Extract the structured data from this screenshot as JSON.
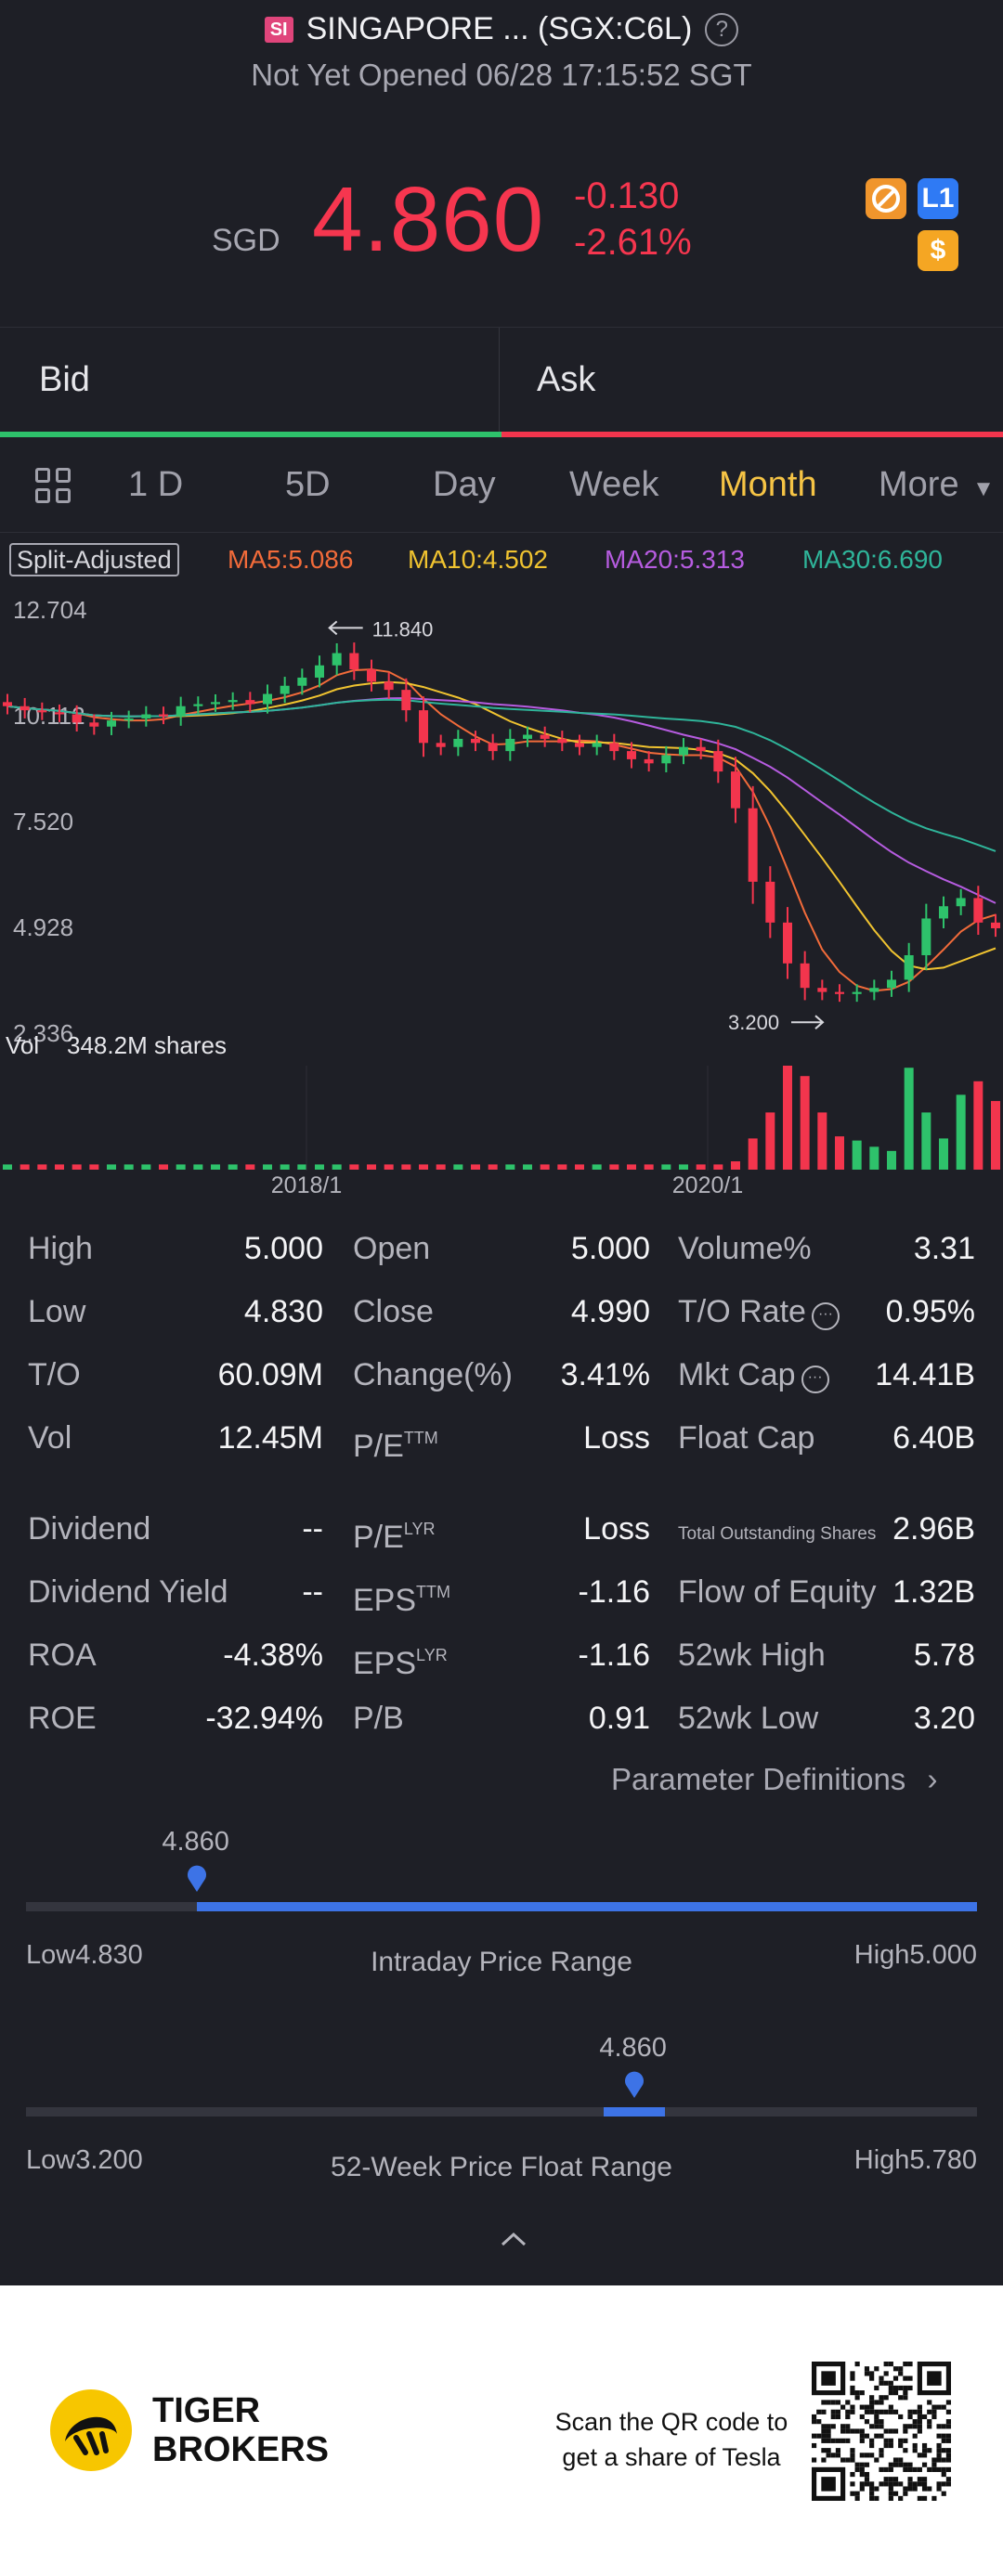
{
  "header": {
    "exchange_badge": "SI",
    "stock_name": "SINGAPORE ... (SGX:C6L)",
    "status_line": "Not Yet Opened 06/28 17:15:52 SGT",
    "currency": "SGD",
    "price": "4.860",
    "change": "-0.130",
    "change_pct": "-2.61%",
    "icon_l1": "L1",
    "icon_dollar": "$"
  },
  "orderbook": {
    "bid_label": "Bid",
    "ask_label": "Ask"
  },
  "tabs": {
    "d1": "1 D",
    "d5": "5D",
    "day": "Day",
    "week": "Week",
    "month": "Month",
    "more": "More"
  },
  "ma": {
    "split_label": "Split-Adjusted",
    "ma5": "MA5:5.086",
    "ma10": "MA10:4.502",
    "ma20": "MA20:5.313",
    "ma30": "MA30:6.690"
  },
  "chart_data": {
    "type": "candlestick",
    "y_ticks": [
      "12.704",
      "10.112",
      "7.520",
      "4.928",
      "2.336"
    ],
    "ylim": [
      2.336,
      12.704
    ],
    "annotation_high": "11.840",
    "annotation_low": "3.200",
    "volume_label": "Vol",
    "volume_value": "348.2M shares",
    "x_ticks": [
      "2018/1",
      "2020/1"
    ],
    "close": [
      10.3,
      10.2,
      10.15,
      10.1,
      9.9,
      9.8,
      9.95,
      10.0,
      10.1,
      10.05,
      10.3,
      10.35,
      10.4,
      10.45,
      10.35,
      10.6,
      10.8,
      11.0,
      11.3,
      11.6,
      11.2,
      10.9,
      10.7,
      10.2,
      9.4,
      9.3,
      9.5,
      9.4,
      9.2,
      9.5,
      9.6,
      9.5,
      9.4,
      9.3,
      9.4,
      9.2,
      9.0,
      8.9,
      9.1,
      9.3,
      9.2,
      8.7,
      7.8,
      6.0,
      5.0,
      4.0,
      3.4,
      3.3,
      3.25,
      3.3,
      3.4,
      3.6,
      4.2,
      5.1,
      5.4,
      5.6,
      5.0,
      4.86
    ],
    "volume_relative": [
      0.05,
      0.05,
      0.05,
      0.05,
      0.05,
      0.05,
      0.05,
      0.05,
      0.05,
      0.05,
      0.05,
      0.05,
      0.05,
      0.05,
      0.05,
      0.05,
      0.05,
      0.05,
      0.05,
      0.05,
      0.05,
      0.05,
      0.05,
      0.05,
      0.05,
      0.05,
      0.05,
      0.05,
      0.05,
      0.05,
      0.05,
      0.05,
      0.05,
      0.05,
      0.05,
      0.05,
      0.05,
      0.05,
      0.05,
      0.05,
      0.05,
      0.05,
      0.08,
      0.3,
      0.55,
      1.0,
      0.9,
      0.55,
      0.32,
      0.28,
      0.22,
      0.18,
      0.98,
      0.55,
      0.3,
      0.72,
      0.85,
      0.66
    ],
    "series": [
      {
        "name": "MA5",
        "color": "#f26b3a"
      },
      {
        "name": "MA10",
        "color": "#f0c330"
      },
      {
        "name": "MA20",
        "color": "#b65ce0"
      },
      {
        "name": "MA30",
        "color": "#2fb59a"
      }
    ]
  },
  "stats": {
    "high_k": "High",
    "high_v": "5.000",
    "open_k": "Open",
    "open_v": "5.000",
    "volpct_k": "Volume%",
    "volpct_v": "3.31",
    "low_k": "Low",
    "low_v": "4.830",
    "close_k": "Close",
    "close_v": "4.990",
    "toRate_k": "T/O Rate",
    "toRate_v": "0.95%",
    "to_k": "T/O",
    "to_v": "60.09M",
    "changepct_k": "Change(%)",
    "changepct_v": "3.41%",
    "mktcap_k": "Mkt Cap",
    "mktcap_v": "14.41B",
    "vol_k": "Vol",
    "vol_v": "12.45M",
    "pe_ttm_k": "P/E",
    "pe_ttm_sup": "TTM",
    "pe_ttm_v": "Loss",
    "floatcap_k": "Float Cap",
    "floatcap_v": "6.40B",
    "dividend_k": "Dividend",
    "dividend_v": "--",
    "pe_lyr_k": "P/E",
    "pe_lyr_sup": "LYR",
    "pe_lyr_v": "Loss",
    "tos_k": "Total Outstanding Shares",
    "tos_v": "2.96B",
    "divyield_k": "Dividend Yield",
    "divyield_v": "--",
    "eps_ttm_k": "EPS",
    "eps_ttm_sup": "TTM",
    "eps_ttm_v": "-1.16",
    "foe_k": "Flow of Equity",
    "foe_v": "1.32B",
    "roa_k": "ROA",
    "roa_v": "-4.38%",
    "eps_lyr_k": "EPS",
    "eps_lyr_sup": "LYR",
    "eps_lyr_v": "-1.16",
    "wk52h_k": "52wk High",
    "wk52h_v": "5.78",
    "roe_k": "ROE",
    "roe_v": "-32.94%",
    "pb_k": "P/B",
    "pb_v": "0.91",
    "wk52l_k": "52wk Low",
    "wk52l_v": "3.20",
    "param_link": "Parameter Definitions"
  },
  "intraday_range": {
    "current": "4.860",
    "low": "Low4.830",
    "high": "High5.000",
    "label": "Intraday Price Range",
    "position": 0.18
  },
  "week52_range": {
    "current": "4.860",
    "low": "Low3.200",
    "high": "High5.780",
    "label": "52-Week Price Float Range",
    "position": 0.64
  },
  "footer": {
    "brand_line1": "TIGER",
    "brand_line2": "BROKERS",
    "scan_line1": "Scan the QR code to",
    "scan_line2": "get a share of Tesla"
  }
}
